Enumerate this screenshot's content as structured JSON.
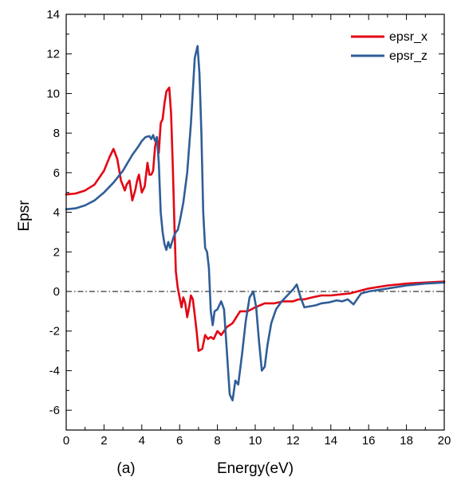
{
  "chart_data": {
    "type": "line",
    "title": "",
    "panel_label": "(a)",
    "xlabel": "Energy(eV)",
    "ylabel": "Epsr",
    "xlim": [
      0,
      20
    ],
    "ylim": [
      -7,
      14
    ],
    "xticks": [
      0,
      2,
      4,
      6,
      8,
      10,
      12,
      14,
      16,
      18,
      20
    ],
    "yticks": [
      -6,
      -4,
      -2,
      0,
      2,
      4,
      6,
      8,
      10,
      12,
      14
    ],
    "grid": false,
    "legend_position": "top-right",
    "reference_line": {
      "y": 0,
      "style": "dash-dot",
      "color": "#000000"
    },
    "series": [
      {
        "name": "epsr_x",
        "color": "#e30613",
        "x": [
          0,
          0.5,
          1.0,
          1.5,
          2.0,
          2.3,
          2.5,
          2.7,
          2.9,
          3.1,
          3.2,
          3.35,
          3.5,
          3.65,
          3.75,
          3.85,
          4.0,
          4.15,
          4.3,
          4.4,
          4.5,
          4.6,
          4.7,
          4.8,
          4.9,
          5.0,
          5.1,
          5.2,
          5.3,
          5.45,
          5.55,
          5.65,
          5.72,
          5.8,
          5.9,
          6.0,
          6.1,
          6.2,
          6.3,
          6.4,
          6.5,
          6.6,
          6.7,
          6.8,
          6.9,
          7.0,
          7.2,
          7.35,
          7.5,
          7.65,
          7.8,
          8.0,
          8.2,
          8.5,
          8.8,
          9.2,
          9.6,
          10.0,
          10.5,
          11.0,
          11.5,
          12.0,
          12.3,
          12.6,
          13.0,
          13.5,
          14.0,
          14.5,
          15.0,
          16.0,
          17.0,
          18.0,
          19.0,
          20.0
        ],
        "values": [
          4.9,
          4.95,
          5.1,
          5.4,
          6.1,
          6.8,
          7.2,
          6.7,
          5.6,
          5.1,
          5.4,
          5.6,
          4.6,
          5.1,
          5.6,
          5.9,
          5.0,
          5.3,
          6.5,
          5.9,
          5.9,
          6.1,
          7.3,
          7.8,
          7.0,
          8.5,
          8.7,
          9.5,
          10.1,
          10.3,
          9.0,
          6.0,
          3.5,
          1.0,
          0.2,
          -0.3,
          -0.8,
          -0.3,
          -0.6,
          -1.3,
          -0.8,
          -0.2,
          -0.4,
          -1.2,
          -2.0,
          -3.0,
          -2.9,
          -2.2,
          -2.4,
          -2.3,
          -2.4,
          -2.0,
          -2.2,
          -1.8,
          -1.6,
          -1.0,
          -1.0,
          -0.8,
          -0.6,
          -0.6,
          -0.5,
          -0.5,
          -0.4,
          -0.4,
          -0.3,
          -0.2,
          -0.2,
          -0.15,
          -0.1,
          0.15,
          0.3,
          0.4,
          0.45,
          0.5
        ]
      },
      {
        "name": "epsr_z",
        "color": "#2f5e97",
        "x": [
          0,
          0.5,
          1.0,
          1.5,
          2.0,
          2.5,
          3.0,
          3.5,
          3.8,
          4.0,
          4.2,
          4.4,
          4.5,
          4.6,
          4.7,
          4.8,
          4.9,
          5.0,
          5.1,
          5.2,
          5.3,
          5.4,
          5.5,
          5.6,
          5.7,
          5.8,
          5.9,
          6.0,
          6.2,
          6.4,
          6.6,
          6.8,
          6.95,
          7.05,
          7.15,
          7.25,
          7.35,
          7.45,
          7.55,
          7.65,
          7.75,
          7.85,
          8.0,
          8.2,
          8.35,
          8.5,
          8.65,
          8.8,
          8.95,
          9.1,
          9.3,
          9.5,
          9.7,
          9.9,
          10.05,
          10.2,
          10.35,
          10.5,
          10.65,
          10.85,
          11.1,
          11.4,
          11.7,
          12.0,
          12.2,
          12.4,
          12.6,
          12.9,
          13.2,
          13.5,
          13.9,
          14.3,
          14.6,
          14.9,
          15.2,
          15.6,
          16.0,
          17.0,
          18.0,
          19.0,
          20.0
        ],
        "values": [
          4.15,
          4.2,
          4.35,
          4.6,
          5.0,
          5.5,
          6.1,
          6.9,
          7.3,
          7.6,
          7.8,
          7.85,
          7.7,
          7.9,
          7.6,
          7.8,
          6.5,
          4.0,
          3.0,
          2.4,
          2.1,
          2.5,
          2.2,
          2.5,
          2.8,
          3.0,
          3.1,
          3.5,
          4.5,
          6.0,
          8.5,
          11.8,
          12.4,
          11.0,
          8.0,
          4.0,
          2.2,
          2.0,
          1.2,
          -1.0,
          -1.7,
          -1.0,
          -0.9,
          -0.5,
          -0.9,
          -3.0,
          -5.2,
          -5.5,
          -4.5,
          -4.7,
          -3.2,
          -1.5,
          -0.3,
          0.0,
          -0.8,
          -2.5,
          -4.0,
          -3.8,
          -2.7,
          -1.6,
          -0.9,
          -0.5,
          -0.2,
          0.1,
          0.35,
          -0.3,
          -0.8,
          -0.75,
          -0.7,
          -0.6,
          -0.55,
          -0.45,
          -0.5,
          -0.4,
          -0.65,
          -0.1,
          0.0,
          0.15,
          0.3,
          0.4,
          0.45
        ]
      }
    ]
  }
}
